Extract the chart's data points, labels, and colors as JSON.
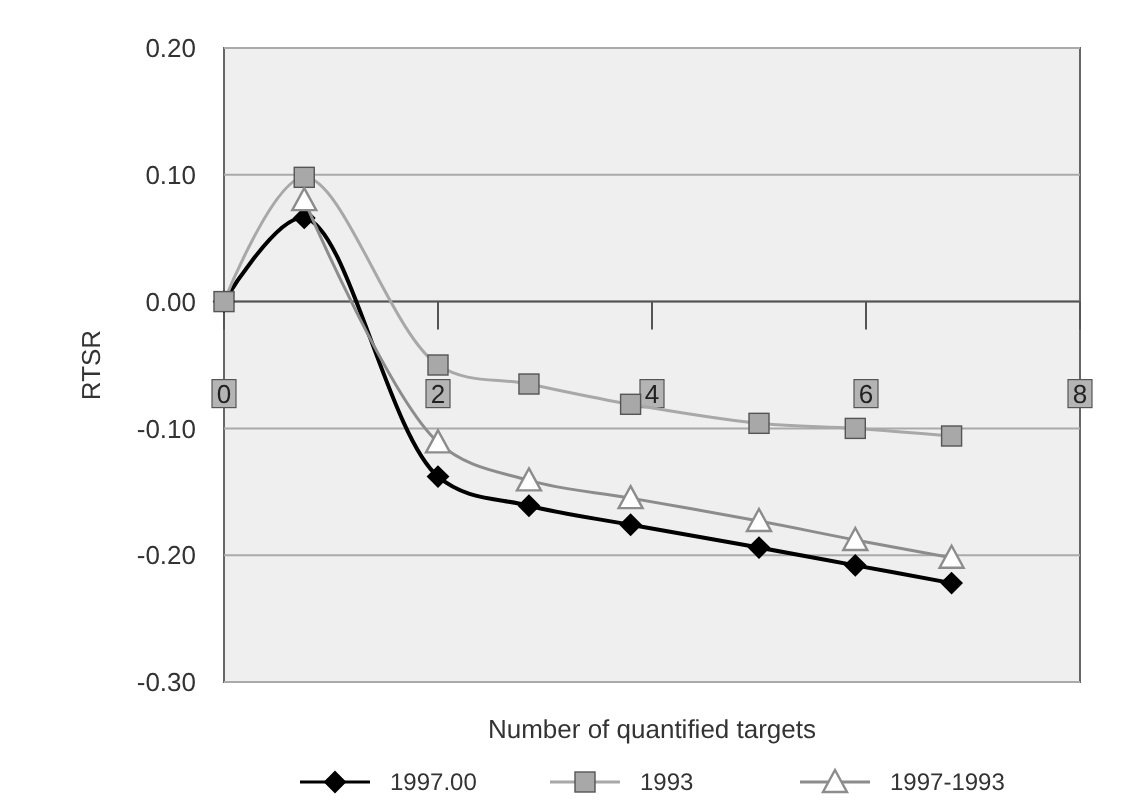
{
  "chart_data": {
    "type": "line",
    "xlabel": "Number of quantified targets",
    "ylabel": "RTSR",
    "xlim": [
      0,
      8
    ],
    "xticks": [
      0,
      2,
      4,
      6,
      8
    ],
    "ylim": [
      -0.3,
      0.2
    ],
    "yticks": [
      {
        "value": -0.3,
        "label": "-0.30"
      },
      {
        "value": -0.2,
        "label": "-0.20"
      },
      {
        "value": -0.1,
        "label": "-0.10"
      },
      {
        "value": 0,
        "label": "0.00"
      },
      {
        "value": 0.1,
        "label": "0.10"
      },
      {
        "value": 0.2,
        "label": "0.20"
      }
    ],
    "x": [
      0,
      0.75,
      2,
      2.85,
      3.8,
      5,
      5.9,
      6.8
    ],
    "grid": "y",
    "legend": "bottom",
    "line_style": "solid",
    "series": [
      {
        "name": "1997.00",
        "color": "#000000",
        "marker": "diamond",
        "values": [
          0,
          0.066,
          -0.138,
          -0.161,
          -0.176,
          -0.194,
          -0.208,
          -0.222
        ]
      },
      {
        "name": "1993",
        "color": "#a8a8a8",
        "marker": "square",
        "values": [
          0,
          0.098,
          -0.05,
          -0.065,
          -0.081,
          -0.096,
          -0.1,
          -0.106
        ]
      },
      {
        "name": "1997-1993",
        "color": "#8c8c8c",
        "marker": "triangle",
        "values": [
          null,
          0.08,
          -0.111,
          -0.141,
          -0.155,
          -0.173,
          -0.188,
          -0.202
        ]
      }
    ]
  }
}
